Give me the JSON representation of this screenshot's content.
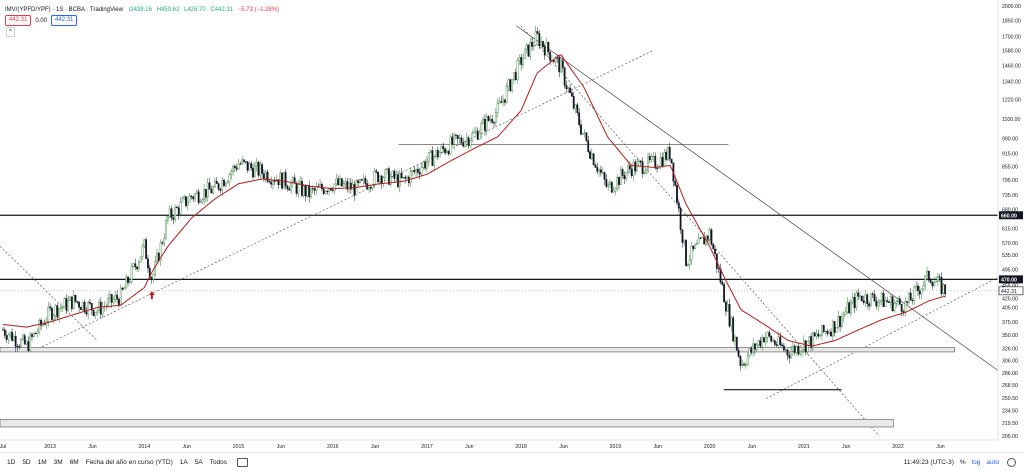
{
  "header": {
    "symbol": "IMV/(YPFD/YPF) · 1S · BCBA · TradingView",
    "open": "O438.16",
    "high": "H450.62",
    "low": "L426.70",
    "close": "C442.31",
    "change": "−5.73 (−1.28%)"
  },
  "legend_row": {
    "value_red": "442.31",
    "value_mid": "0.00",
    "value_blue": "442.31"
  },
  "collapse_label": "^",
  "footer": {
    "ranges": [
      "1D",
      "5D",
      "1M",
      "3M",
      "6M",
      "Fecha del año en curso (YTD)",
      "1A",
      "5A",
      "Todos"
    ],
    "time": "11:49:23 (UTC-3)",
    "pct": "%",
    "log": "log",
    "auto": "auto"
  },
  "price_axis": {
    "ticks": [
      "2000.00",
      "1850.00",
      "1700.00",
      "1580.00",
      "1460.00",
      "1340.00",
      "1220.00",
      "1100.00",
      "990.00",
      "915.00",
      "855.00",
      "795.00",
      "735.00",
      "680.00",
      "615.00",
      "570.00",
      "535.00",
      "495.00",
      "455.00",
      "425.00",
      "405.00",
      "375.00",
      "350.00",
      "326.00",
      "306.00",
      "286.00",
      "268.50",
      "250.50",
      "234.50",
      "219.50",
      "205.00"
    ],
    "marker_660": "660.00",
    "marker_470": "470.00",
    "marker_last": "442.31"
  },
  "time_axis": [
    "Jul",
    "2013",
    "Jun",
    "2014",
    "Jun",
    "2015",
    "Jun",
    "2016",
    "Jun",
    "2017",
    "Jun",
    "2018",
    "Jun",
    "2019",
    "Jun",
    "2020",
    "Jun",
    "2021",
    "Jun",
    "2022",
    "Jun"
  ],
  "chart_data": {
    "type": "candlestick",
    "instrument": "IMV/(YPFD/YPF)",
    "interval": "1S",
    "exchange": "BCBA",
    "y_scale": "log",
    "ylim": [
      205,
      2000
    ],
    "x_range": [
      "2012-07",
      "2022-08"
    ],
    "last": {
      "open": 438.16,
      "high": 450.62,
      "low": 426.7,
      "close": 442.31,
      "change": -5.73,
      "change_pct": -1.28
    },
    "horizontal_levels": [
      660.0,
      470.0
    ],
    "x": [
      "2012-07",
      "2012-10",
      "2013-01",
      "2013-04",
      "2013-07",
      "2013-10",
      "2014-01",
      "2014-02",
      "2014-04",
      "2014-07",
      "2014-10",
      "2015-01",
      "2015-04",
      "2015-07",
      "2015-10",
      "2016-01",
      "2016-04",
      "2016-07",
      "2016-10",
      "2017-01",
      "2017-04",
      "2017-07",
      "2017-10",
      "2018-01",
      "2018-03",
      "2018-06",
      "2018-09",
      "2018-12",
      "2019-03",
      "2019-06",
      "2019-08",
      "2019-10",
      "2020-01",
      "2020-03",
      "2020-05",
      "2020-08",
      "2020-11",
      "2021-02",
      "2021-05",
      "2021-08",
      "2021-11",
      "2022-02",
      "2022-05",
      "2022-07"
    ],
    "close": [
      360,
      330,
      395,
      420,
      400,
      430,
      560,
      470,
      650,
      730,
      760,
      870,
      830,
      790,
      740,
      780,
      760,
      820,
      790,
      880,
      960,
      1010,
      1150,
      1500,
      1700,
      1450,
      1000,
      760,
      850,
      870,
      920,
      520,
      600,
      420,
      300,
      350,
      320,
      340,
      370,
      430,
      420,
      410,
      480,
      442.31
    ],
    "moving_average": [
      370,
      365,
      375,
      390,
      405,
      410,
      450,
      490,
      560,
      650,
      720,
      780,
      800,
      790,
      770,
      760,
      765,
      780,
      790,
      820,
      880,
      940,
      1000,
      1150,
      1400,
      1550,
      1300,
      1000,
      860,
      850,
      860,
      700,
      560,
      470,
      400,
      370,
      340,
      330,
      340,
      360,
      380,
      395,
      420,
      430
    ]
  }
}
